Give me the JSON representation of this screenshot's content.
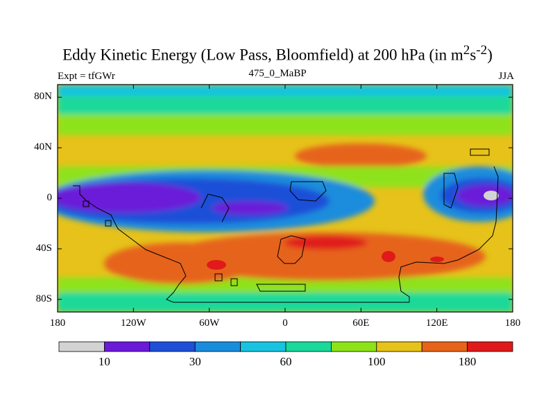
{
  "title": {
    "main": "Eddy Kinetic Energy (Low Pass, Bloomfield) at 200 hPa (in m",
    "sup1": "2",
    "mid": "s",
    "sup2": "-2",
    "end": ")"
  },
  "subtitle": {
    "left": "Expt = tfGWr",
    "center": "475_0_MaBP",
    "right": "JJA"
  },
  "axes": {
    "y_ticks": [
      "80N",
      "40N",
      "0",
      "40S",
      "80S"
    ],
    "y_values": [
      80,
      40,
      0,
      -40,
      -80
    ],
    "x_ticks": [
      "180",
      "120W",
      "60W",
      "0",
      "60E",
      "120E",
      "180"
    ],
    "x_values": [
      -180,
      -120,
      -60,
      0,
      60,
      120,
      180
    ],
    "lon_range": [
      -180,
      180
    ],
    "lat_range": [
      -90,
      90
    ]
  },
  "colorbar": {
    "colors": [
      "#d3d3d3",
      "#6a1ad8",
      "#1f4fd8",
      "#1a8cdc",
      "#19c3df",
      "#1ad99a",
      "#8ee21a",
      "#e6c21a",
      "#e6641a",
      "#e01a1a"
    ],
    "tick_labels": [
      "10",
      "30",
      "60",
      "100",
      "180"
    ],
    "tick_boundaries": [
      1,
      3,
      5,
      7,
      9
    ]
  },
  "colors": {
    "ocean_background": "#e6c21a",
    "frame": "#000000"
  }
}
